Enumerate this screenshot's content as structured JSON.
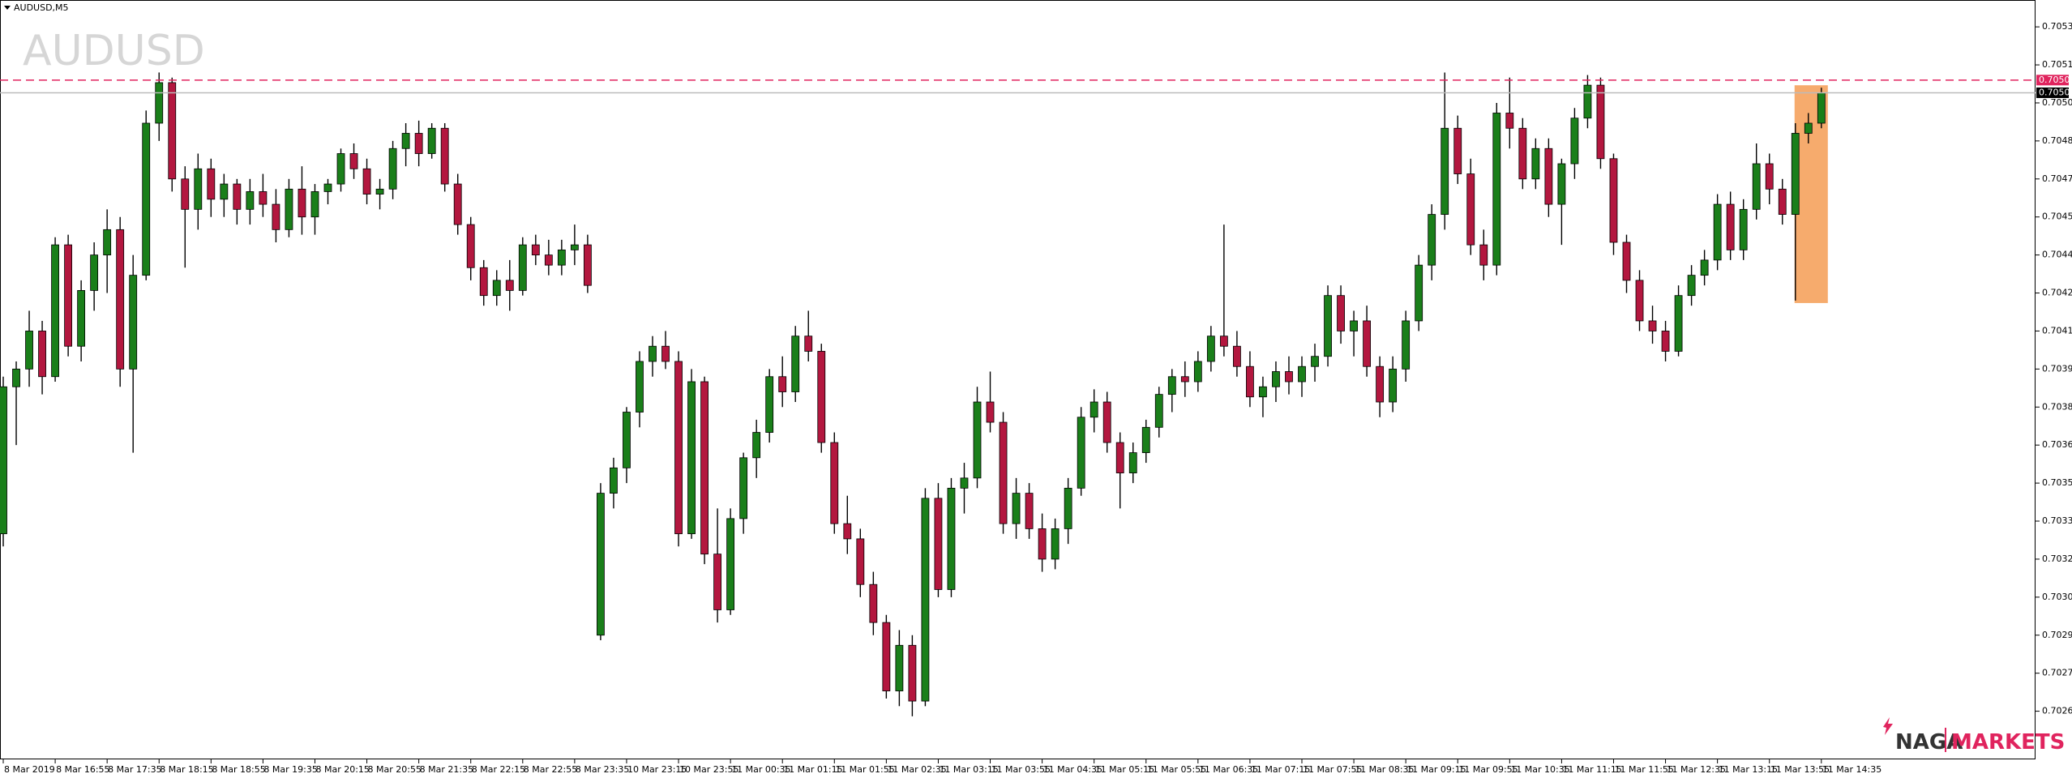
{
  "chart_data": {
    "type": "candlestick",
    "symbol": "AUDUSD,M5",
    "watermark": "AUDUSD",
    "brand": {
      "left": "NAGA",
      "right": "MARKETS"
    },
    "up_color": "#1a7f1a",
    "down_color": "#b3173f",
    "ylim": [
      0.70241,
      0.70539
    ],
    "yticks": [
      {
        "value": 0.7053,
        "label": "0.70530"
      },
      0.70515,
      {
        "value": 0.705,
        "label": "0.70500"
      },
      0.70485,
      {
        "value": 0.7047,
        "label": "0.70470"
      },
      0.70455,
      {
        "value": 0.7044,
        "label": "0.70440"
      },
      0.70425,
      {
        "value": 0.7041,
        "label": "0.70410"
      },
      0.70395,
      {
        "value": 0.7038,
        "label": "0.70380"
      },
      0.70365,
      {
        "value": 0.7035,
        "label": "0.70350"
      },
      0.70335,
      {
        "value": 0.7032,
        "label": "0.70320"
      },
      0.70305,
      {
        "value": 0.7029,
        "label": "0.70290"
      },
      0.70275,
      {
        "value": 0.7026,
        "label": "0.70260"
      }
    ],
    "price_lines": [
      {
        "value": 0.70509,
        "color": "#e0245e",
        "style": "dashed"
      },
      {
        "value": 0.70504,
        "color": "#000000",
        "style": "solid"
      }
    ],
    "categories": [
      "8 Mar 2019",
      null,
      null,
      null,
      "8 Mar 16:55",
      null,
      null,
      null,
      "8 Mar 17:35",
      null,
      null,
      null,
      "8 Mar 18:15",
      null,
      null,
      null,
      "8 Mar 18:55",
      null,
      null,
      null,
      "8 Mar 19:35",
      null,
      null,
      null,
      "8 Mar 20:15",
      null,
      null,
      null,
      "8 Mar 20:55",
      null,
      null,
      null,
      "8 Mar 21:35",
      null,
      null,
      null,
      "8 Mar 22:15",
      null,
      null,
      null,
      "8 Mar 22:55",
      null,
      null,
      null,
      "8 Mar 23:35",
      null,
      null,
      null,
      "10 Mar 23:15",
      null,
      null,
      null,
      "10 Mar 23:55",
      null,
      null,
      null,
      "11 Mar 00:35",
      null,
      null,
      null,
      "11 Mar 01:15",
      null,
      null,
      null,
      "11 Mar 01:55",
      null,
      null,
      null,
      "11 Mar 02:35",
      null,
      null,
      null,
      "11 Mar 03:15",
      null,
      null,
      null,
      "11 Mar 03:55",
      null,
      null,
      null,
      "11 Mar 04:35",
      null,
      null,
      null,
      "11 Mar 05:15",
      null,
      null,
      null,
      "11 Mar 05:55",
      null,
      null,
      null,
      "11 Mar 06:35",
      null,
      null,
      null,
      "11 Mar 07:15",
      null,
      null,
      null,
      "11 Mar 07:55",
      null,
      null,
      null,
      "11 Mar 08:35",
      null,
      null,
      null,
      "11 Mar 09:15",
      null,
      null,
      null,
      "11 Mar 09:55",
      null,
      null,
      null,
      "11 Mar 10:35",
      null,
      null,
      null,
      "11 Mar 11:15",
      null,
      null,
      null,
      "11 Mar 11:55",
      null,
      null,
      null,
      "11 Mar 12:35",
      null,
      null,
      null,
      "11 Mar 13:15",
      null,
      null,
      null,
      "11 Mar 13:55",
      null,
      null,
      null,
      "11 Mar 14:35"
    ],
    "open": [
      0.7033,
      0.70388,
      0.70395,
      0.7041,
      0.70392,
      0.70444,
      0.70404,
      0.70426,
      0.7044,
      0.7045,
      0.70395,
      0.70432,
      0.70492,
      0.70508,
      0.7047,
      0.70458,
      0.70474,
      0.70462,
      0.70468,
      0.70458,
      0.70465,
      0.7046,
      0.7045,
      0.70466,
      0.70455,
      0.70465,
      0.70468,
      0.7048,
      0.70474,
      0.70464,
      0.70466,
      0.70482,
      0.70488,
      0.7048,
      0.7049,
      0.70468,
      0.70452,
      0.70435,
      0.70424,
      0.7043,
      0.70426,
      0.70444,
      0.7044,
      0.70436,
      0.70442,
      0.70444,
      0.7029,
      0.70346,
      0.70356,
      0.70378,
      0.70398,
      0.70404,
      0.70398,
      0.7033,
      0.7039,
      0.70322,
      0.703,
      0.70336,
      0.7036,
      0.7037,
      0.70392,
      0.70386,
      0.70408,
      0.70402,
      0.70366,
      0.70334,
      0.70328,
      0.7031,
      0.70295,
      0.70268,
      0.70286,
      0.70264,
      0.70344,
      0.70308,
      0.70348,
      0.70352,
      0.70382,
      0.70374,
      0.70334,
      0.70346,
      0.70332,
      0.7032,
      0.70332,
      0.70348,
      0.70376,
      0.70382,
      0.70366,
      0.70354,
      0.70362,
      0.70372,
      0.70385,
      0.70392,
      0.7039,
      0.70398,
      0.70408,
      0.70404,
      0.70396,
      0.70384,
      0.70388,
      0.70394,
      0.7039,
      0.70396,
      0.704,
      0.70424,
      0.7041,
      0.70414,
      0.70396,
      0.70382,
      0.70395,
      0.70414,
      0.70436,
      0.70456,
      0.7049,
      0.70472,
      0.70444,
      0.70436,
      0.70496,
      0.7049,
      0.7047,
      0.70482,
      0.7046,
      0.70476,
      0.70494,
      0.70507,
      0.70478,
      0.70445,
      0.7043,
      0.70414,
      0.7041,
      0.70402,
      0.70424,
      0.70432,
      0.70438,
      0.7046,
      0.70442,
      0.70458,
      0.70476,
      0.70466,
      0.70456,
      0.70488,
      0.70492
    ],
    "high": [
      0.70392,
      0.70398,
      0.70418,
      0.70414,
      0.70447,
      0.70448,
      0.7043,
      0.70445,
      0.70458,
      0.70455,
      0.7044,
      0.70497,
      0.70512,
      0.7051,
      0.70475,
      0.7048,
      0.70478,
      0.70472,
      0.7047,
      0.7047,
      0.70472,
      0.70466,
      0.7047,
      0.70475,
      0.70468,
      0.7047,
      0.70482,
      0.70484,
      0.70478,
      0.7047,
      0.70485,
      0.70492,
      0.70493,
      0.70492,
      0.70492,
      0.70472,
      0.70455,
      0.70438,
      0.70434,
      0.70438,
      0.70447,
      0.70448,
      0.70446,
      0.70446,
      0.70452,
      0.70448,
      0.7035,
      0.7036,
      0.7038,
      0.70402,
      0.70408,
      0.7041,
      0.70402,
      0.70395,
      0.70392,
      0.7034,
      0.7034,
      0.70362,
      0.70375,
      0.70395,
      0.704,
      0.70412,
      0.70418,
      0.70405,
      0.7037,
      0.70345,
      0.70332,
      0.70315,
      0.70298,
      0.70292,
      0.7029,
      0.70348,
      0.7035,
      0.70352,
      0.70358,
      0.70388,
      0.70394,
      0.70378,
      0.70352,
      0.7035,
      0.70338,
      0.70336,
      0.70352,
      0.7038,
      0.70387,
      0.70386,
      0.7037,
      0.70366,
      0.70375,
      0.70388,
      0.70395,
      0.70398,
      0.70402,
      0.70412,
      0.70452,
      0.7041,
      0.70402,
      0.70392,
      0.70398,
      0.704,
      0.704,
      0.70405,
      0.70428,
      0.70428,
      0.70418,
      0.7042,
      0.704,
      0.704,
      0.70418,
      0.7044,
      0.7046,
      0.70512,
      0.70495,
      0.70478,
      0.7045,
      0.705,
      0.7051,
      0.70494,
      0.70486,
      0.70486,
      0.70478,
      0.70498,
      0.70511,
      0.7051,
      0.7048,
      0.70448,
      0.70434,
      0.7042,
      0.70414,
      0.70428,
      0.70436,
      0.70442,
      0.70464,
      0.70465,
      0.70462,
      0.70484,
      0.7048,
      0.7047,
      0.70492,
      0.70496,
      0.70506
    ],
    "low": [
      0.70325,
      0.70365,
      0.70388,
      0.70385,
      0.7039,
      0.704,
      0.70398,
      0.70418,
      0.70425,
      0.70388,
      0.70362,
      0.7043,
      0.70485,
      0.70465,
      0.70435,
      0.7045,
      0.70455,
      0.70455,
      0.70452,
      0.70452,
      0.70455,
      0.70445,
      0.70447,
      0.70448,
      0.70448,
      0.7046,
      0.70465,
      0.7047,
      0.7046,
      0.70458,
      0.70462,
      0.70475,
      0.70475,
      0.70478,
      0.70465,
      0.70448,
      0.7043,
      0.7042,
      0.7042,
      0.70418,
      0.70424,
      0.70436,
      0.70432,
      0.70432,
      0.70436,
      0.70425,
      0.70288,
      0.7034,
      0.7035,
      0.70372,
      0.70392,
      0.70395,
      0.70325,
      0.70328,
      0.70318,
      0.70295,
      0.70298,
      0.7033,
      0.70352,
      0.70366,
      0.7038,
      0.70382,
      0.70398,
      0.70362,
      0.7033,
      0.70322,
      0.70305,
      0.7029,
      0.70265,
      0.70262,
      0.70258,
      0.70262,
      0.70305,
      0.70305,
      0.70338,
      0.70348,
      0.7037,
      0.7033,
      0.70328,
      0.70328,
      0.70315,
      0.70316,
      0.70326,
      0.70345,
      0.7037,
      0.70362,
      0.7034,
      0.7035,
      0.70358,
      0.70368,
      0.70378,
      0.70384,
      0.70386,
      0.70394,
      0.704,
      0.70392,
      0.7038,
      0.70376,
      0.70382,
      0.70385,
      0.70384,
      0.7039,
      0.70396,
      0.70405,
      0.704,
      0.70392,
      0.70376,
      0.70378,
      0.7039,
      0.7041,
      0.7043,
      0.7045,
      0.70468,
      0.7044,
      0.7043,
      0.70432,
      0.70482,
      0.70466,
      0.70466,
      0.70455,
      0.70444,
      0.7047,
      0.7049,
      0.70474,
      0.7044,
      0.70425,
      0.7041,
      0.70405,
      0.70398,
      0.704,
      0.7042,
      0.70428,
      0.70434,
      0.70438,
      0.70438,
      0.70454,
      0.7046,
      0.70452,
      0.70422,
      0.70484,
      0.7049
    ],
    "close": [
      0.70388,
      0.70395,
      0.7041,
      0.70392,
      0.70444,
      0.70404,
      0.70426,
      0.7044,
      0.7045,
      0.70395,
      0.70432,
      0.70492,
      0.70508,
      0.7047,
      0.70458,
      0.70474,
      0.70462,
      0.70468,
      0.70458,
      0.70465,
      0.7046,
      0.7045,
      0.70466,
      0.70455,
      0.70465,
      0.70468,
      0.7048,
      0.70474,
      0.70464,
      0.70466,
      0.70482,
      0.70488,
      0.7048,
      0.7049,
      0.70468,
      0.70452,
      0.70435,
      0.70424,
      0.7043,
      0.70426,
      0.70444,
      0.7044,
      0.70436,
      0.70442,
      0.70444,
      0.70428,
      0.70346,
      0.70356,
      0.70378,
      0.70398,
      0.70404,
      0.70398,
      0.7033,
      0.7039,
      0.70322,
      0.703,
      0.70336,
      0.7036,
      0.7037,
      0.70392,
      0.70386,
      0.70408,
      0.70402,
      0.70366,
      0.70334,
      0.70328,
      0.7031,
      0.70295,
      0.70268,
      0.70286,
      0.70264,
      0.70344,
      0.70308,
      0.70348,
      0.70352,
      0.70382,
      0.70374,
      0.70334,
      0.70346,
      0.70332,
      0.7032,
      0.70332,
      0.70348,
      0.70376,
      0.70382,
      0.70366,
      0.70354,
      0.70362,
      0.70372,
      0.70385,
      0.70392,
      0.7039,
      0.70398,
      0.70408,
      0.70404,
      0.70396,
      0.70384,
      0.70388,
      0.70394,
      0.7039,
      0.70396,
      0.704,
      0.70424,
      0.7041,
      0.70414,
      0.70396,
      0.70382,
      0.70395,
      0.70414,
      0.70436,
      0.70456,
      0.7049,
      0.70472,
      0.70444,
      0.70436,
      0.70496,
      0.7049,
      0.7047,
      0.70482,
      0.7046,
      0.70476,
      0.70494,
      0.70507,
      0.70478,
      0.70445,
      0.7043,
      0.70414,
      0.7041,
      0.70402,
      0.70424,
      0.70432,
      0.70438,
      0.7046,
      0.70442,
      0.70458,
      0.70476,
      0.70466,
      0.70456,
      0.70488,
      0.70492,
      0.70504
    ]
  }
}
